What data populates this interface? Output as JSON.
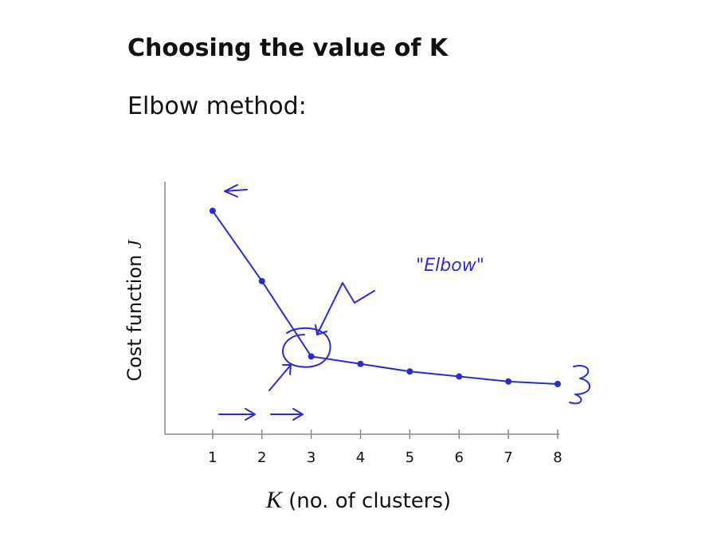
{
  "chart_data": {
    "type": "line",
    "title": "Choosing the value of K",
    "subtitle": "Elbow method:",
    "x_label_var": "K",
    "x_label": "(no. of clusters)",
    "y_label": "Cost function",
    "y_label_var": "J",
    "annotation": "\"Elbow\"",
    "x": [
      1,
      2,
      3,
      4,
      5,
      6,
      7,
      8
    ],
    "values": [
      89,
      61,
      31,
      28,
      25,
      23,
      21,
      20
    ],
    "color": "#2b2bd6",
    "xlim": [
      0,
      8
    ],
    "xticks": [
      1,
      2,
      3,
      4,
      5,
      6,
      7,
      8
    ],
    "ylim": [
      0,
      100
    ]
  }
}
